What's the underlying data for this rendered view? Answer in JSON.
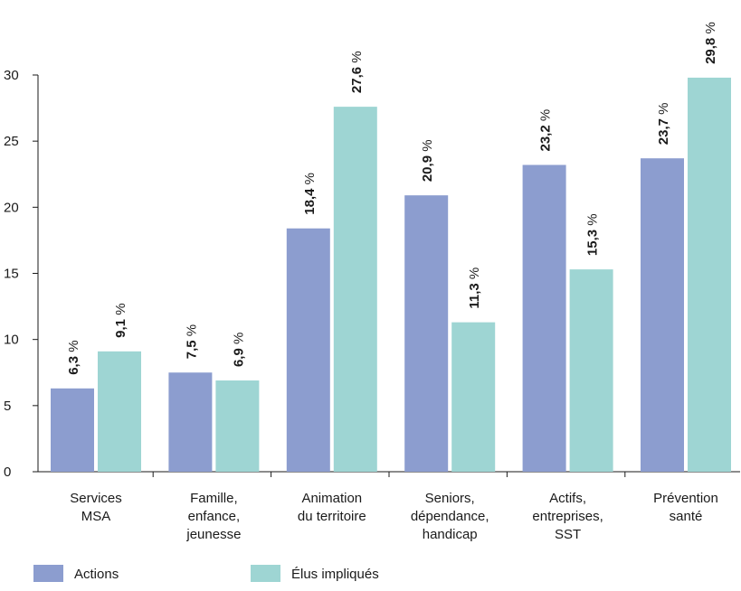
{
  "chart_data": {
    "type": "bar",
    "categories": [
      [
        "Services",
        "MSA"
      ],
      [
        "Famille,",
        "enfance,",
        "jeunesse"
      ],
      [
        "Animation",
        "du territoire"
      ],
      [
        "Seniors,",
        "dépendance,",
        "handicap"
      ],
      [
        "Actifs,",
        "entreprises,",
        "SST"
      ],
      [
        "Prévention",
        "santé"
      ]
    ],
    "series": [
      {
        "name": "Actions",
        "color": "#8c9dcf",
        "values": [
          6.3,
          7.5,
          18.4,
          20.9,
          23.2,
          23.7
        ],
        "labels": [
          "6,3",
          "7,5",
          "18,4",
          "20,9",
          "23,2",
          "23,7"
        ]
      },
      {
        "name": "Élus impliqués",
        "color": "#9ed5d3",
        "values": [
          9.1,
          6.9,
          27.6,
          11.3,
          15.3,
          29.8
        ],
        "labels": [
          "9,1",
          "6,9",
          "27,6",
          "11,3",
          "15,3",
          "29,8"
        ]
      }
    ],
    "unit_suffix": " %",
    "ylim": [
      0,
      30
    ],
    "yticks": [
      0,
      5,
      10,
      15,
      20,
      25,
      30
    ],
    "ytick_labels": [
      "0",
      "5",
      "10",
      "15",
      "20",
      "25",
      "30"
    ],
    "grid": false,
    "legend_position": "bottom-left",
    "title": "",
    "xlabel": "",
    "ylabel": ""
  }
}
